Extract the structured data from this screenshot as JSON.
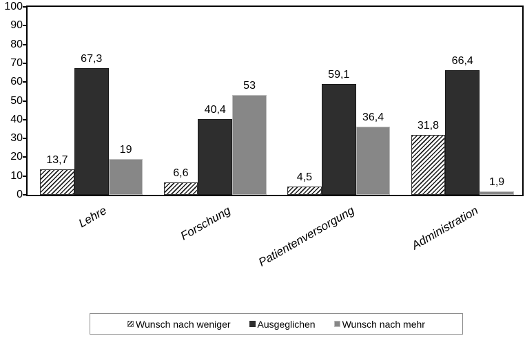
{
  "chart_data": {
    "type": "bar",
    "title": "",
    "xlabel": "",
    "ylabel": "",
    "categories": [
      "Lehre",
      "Forschung",
      "Patientenversorgung",
      "Administration"
    ],
    "series": [
      {
        "name": "Wunsch nach weniger",
        "style": "hatched",
        "values": [
          13.7,
          6.6,
          4.5,
          31.8
        ],
        "labels": [
          "13,7",
          "6,6",
          "4,5",
          "31,8"
        ]
      },
      {
        "name": "Ausgeglichen",
        "style": "dark",
        "values": [
          67.3,
          40.4,
          59.1,
          66.4
        ],
        "labels": [
          "67,3",
          "40,4",
          "59,1",
          "66,4"
        ]
      },
      {
        "name": "Wunsch nach mehr",
        "style": "gray",
        "values": [
          19,
          53,
          36.4,
          1.9
        ],
        "labels": [
          "19",
          "53",
          "36,4",
          "1,9"
        ]
      }
    ],
    "ylim": [
      0,
      100
    ],
    "ytick_step": 10,
    "ytick_labels": [
      "0",
      "10",
      "20",
      "30",
      "40",
      "50",
      "60",
      "70",
      "80",
      "90",
      "100"
    ],
    "grid": false,
    "legend_position": "bottom",
    "colors": {
      "dark": "#2e2e2e",
      "gray": "#878787",
      "gray_border": "#bdbdbd",
      "hatch_fg": "#1c1c1c",
      "hatch_bg": "#ffffff",
      "axis": "#000000",
      "legend_border": "#8c8c8c"
    }
  }
}
